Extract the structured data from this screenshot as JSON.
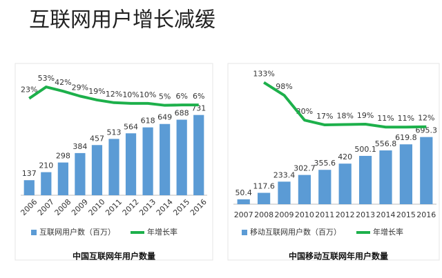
{
  "title": "互联网用户增长减缓",
  "chart_data": [
    {
      "type": "bar-line",
      "caption": "中国互联网年用户数量",
      "categories": [
        "2006",
        "2007",
        "2008",
        "2009",
        "2010",
        "2011",
        "2012",
        "2013",
        "2014",
        "2015",
        "2016"
      ],
      "ylim": [
        0,
        1150
      ],
      "y2lim": [
        -230,
        100
      ],
      "series": [
        {
          "name": "互联网用户数（百万）",
          "kind": "bar",
          "color": "#5b9bd5",
          "values": [
            137,
            210,
            298,
            384,
            457,
            513,
            564,
            618,
            649,
            688,
            731
          ]
        },
        {
          "name": "年增长率",
          "kind": "line",
          "axis": "y2",
          "color": "#1db04b",
          "values": [
            23,
            53,
            42,
            29,
            19,
            12,
            10,
            10,
            5,
            6,
            6
          ],
          "value_labels": [
            "23%",
            "53%",
            "42%",
            "29%",
            "19%",
            "12%",
            "10%",
            "10%",
            "5%",
            "6%",
            "6%"
          ]
        }
      ]
    },
    {
      "type": "bar-line",
      "caption": "中国移动互联网年用户数量",
      "categories": [
        "2007",
        "2008",
        "2009",
        "2010",
        "2011",
        "2012",
        "2013",
        "2014",
        "2015",
        "2016"
      ],
      "ylim": [
        0,
        1400
      ],
      "y2lim": [
        -200,
        170
      ],
      "series": [
        {
          "name": "移动互联网用户数（百万）",
          "kind": "bar",
          "color": "#5b9bd5",
          "values": [
            50.4,
            117.6,
            233.4,
            302.7,
            355.6,
            420,
            500.1,
            556.8,
            619.8,
            695.3
          ]
        },
        {
          "name": "年增长率",
          "kind": "line",
          "axis": "y2",
          "color": "#1db04b",
          "values": [
            null,
            133,
            98,
            30,
            17,
            18,
            19,
            11,
            11,
            12
          ],
          "value_labels": [
            null,
            "133%",
            "98%",
            "30%",
            "17%",
            "18%",
            "19%",
            "11%",
            "11%",
            "12%"
          ]
        }
      ]
    }
  ]
}
